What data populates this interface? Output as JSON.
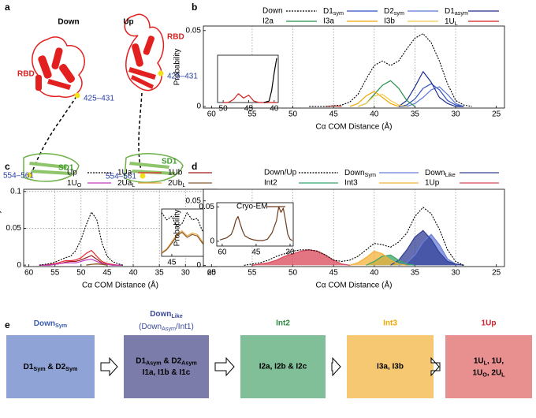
{
  "panel_a": {
    "label": "a",
    "structures": [
      {
        "title": "Down",
        "domain_top": "RBD",
        "domain_bottom": "SD1",
        "site_top": "425–431",
        "site_bottom": "554–561"
      },
      {
        "title": "Up",
        "domain_top": "RBD",
        "domain_bottom": "SD1",
        "site_top": "425–431",
        "site_bottom": "554–561"
      }
    ]
  },
  "chart_data": [
    {
      "type": "line",
      "panel_label": "b",
      "xlabel": "Cα COM Distance (Å)",
      "ylabel": "Probability",
      "xlim": [
        61,
        24
      ],
      "ylim": [
        -0.001,
        0.053
      ],
      "xticks": [
        60,
        55,
        50,
        45,
        40,
        35,
        30,
        25
      ],
      "yticks": [
        0,
        0.05
      ],
      "grid": "x",
      "fill": false,
      "x": [
        48,
        47,
        46,
        45,
        44,
        43,
        42,
        41,
        40,
        39,
        38,
        37,
        36,
        35,
        34,
        33,
        32,
        31,
        30,
        29,
        28
      ],
      "series": [
        {
          "name": "Down",
          "color": "#000000",
          "dash": true,
          "values": [
            0,
            0,
            0,
            0.0005,
            0.001,
            0.003,
            0.008,
            0.018,
            0.027,
            0.03,
            0.027,
            0.03,
            0.038,
            0.045,
            0.048,
            0.042,
            0.03,
            0.015,
            0.004,
            0.001,
            0
          ]
        },
        {
          "name": [
            "D1",
            {
              "sub": "sym"
            }
          ],
          "color": "#2e4fbf",
          "values": [
            null,
            null,
            null,
            null,
            null,
            null,
            null,
            null,
            null,
            null,
            null,
            0,
            0.001,
            0.005,
            0.012,
            0.015,
            0.011,
            0.004,
            0.001,
            0,
            null
          ]
        },
        {
          "name": [
            "D2",
            {
              "sub": "sym"
            }
          ],
          "color": "#5a78d4",
          "values": [
            null,
            null,
            null,
            null,
            null,
            null,
            null,
            null,
            null,
            null,
            null,
            0,
            0,
            0.002,
            0.006,
            0.011,
            0.013,
            0.008,
            0.002,
            0,
            null
          ]
        },
        {
          "name": [
            "D1",
            {
              "sub": "asym"
            }
          ],
          "color": "#1c2f8a",
          "values": [
            null,
            null,
            null,
            null,
            null,
            null,
            null,
            null,
            null,
            null,
            null,
            0,
            0.004,
            0.013,
            0.023,
            0.016,
            0.006,
            0.002,
            0,
            0,
            null
          ]
        },
        {
          "name": "I2a",
          "color": "#23914a",
          "values": [
            null,
            null,
            null,
            null,
            null,
            null,
            0,
            0.002,
            0.008,
            0.014,
            0.017,
            0.012,
            0.004,
            0,
            null,
            null,
            null,
            null,
            null,
            null,
            null
          ]
        },
        {
          "name": "I3a",
          "color": "#f0a500",
          "values": [
            null,
            null,
            null,
            null,
            null,
            0,
            0.002,
            0.007,
            0.01,
            0.006,
            0.002,
            0,
            null,
            null,
            null,
            null,
            null,
            null,
            null,
            null,
            null
          ]
        },
        {
          "name": "I3b",
          "color": "#f2c94c",
          "values": [
            null,
            null,
            null,
            null,
            null,
            null,
            0,
            0.002,
            0.007,
            0.008,
            0.004,
            0.001,
            0,
            null,
            null,
            null,
            null,
            null,
            null,
            null,
            null
          ]
        },
        {
          "name": [
            "1U",
            {
              "sub": "L"
            }
          ],
          "color": "#d41f1f",
          "values": [
            null,
            null,
            0,
            0.0004,
            0,
            null,
            null,
            null,
            null,
            null,
            null,
            null,
            null,
            null,
            null,
            null,
            null,
            null,
            null,
            null,
            null
          ]
        }
      ],
      "inset": {
        "type": "line",
        "xlim": [
          51.1,
          39.2
        ],
        "ylim": [
          0,
          0.0032
        ],
        "xticks": [
          50,
          45,
          40
        ],
        "x": [
          50,
          49,
          48,
          47,
          46,
          45,
          44,
          43,
          42,
          41,
          40.5,
          40,
          39.5
        ],
        "series": [
          {
            "color": "#d41f1f",
            "values": [
              0,
              0,
              0.0002,
              0.0006,
              0.0003,
              0.0005,
              0.0001,
              0,
              0,
              0,
              0,
              0,
              0
            ]
          },
          {
            "color": "#000000",
            "values": [
              null,
              null,
              null,
              null,
              null,
              null,
              null,
              null,
              0,
              0.0001,
              0.0008,
              0.002,
              0.003
            ]
          }
        ]
      }
    },
    {
      "type": "line",
      "panel_label": "c",
      "xlabel": "Cα COM Distance (Å)",
      "ylabel": "Probability",
      "xlim": [
        61,
        24
      ],
      "ylim": [
        -0.002,
        0.103
      ],
      "xticks": [
        60,
        55,
        50,
        45,
        40,
        35,
        30,
        25
      ],
      "yticks": [
        0,
        0.05,
        0.1
      ],
      "grid": "both",
      "fill": false,
      "x": [
        58,
        57,
        56,
        55,
        54,
        53,
        52,
        51,
        50,
        49,
        48,
        47,
        46,
        45,
        44,
        43,
        42
      ],
      "series": [
        {
          "name": "Up",
          "color": "#000000",
          "dash": true,
          "values": [
            0,
            0.001,
            0.002,
            0.004,
            0.007,
            0.01,
            0.012,
            0.02,
            0.035,
            0.055,
            0.072,
            0.062,
            0.03,
            0.012,
            0.005,
            0.002,
            0
          ]
        },
        {
          "name": "1Ua",
          "color": "#e8262b",
          "values": [
            0,
            0,
            0.001,
            0.002,
            0.004,
            0.006,
            0.006,
            0.007,
            0.01,
            0.016,
            0.02,
            0.012,
            0.005,
            0.002,
            0.001,
            0,
            0
          ]
        },
        {
          "name": "1Ub",
          "color": "#a01818",
          "values": [
            0,
            0,
            0,
            0.001,
            0.002,
            0.004,
            0.005,
            0.005,
            0.007,
            0.01,
            0.013,
            0.008,
            0.003,
            0.001,
            0,
            0,
            0
          ]
        },
        {
          "name": [
            "1U",
            {
              "sub": "O"
            }
          ],
          "color": "#c23bc2",
          "values": [
            0,
            0,
            0,
            0.001,
            0.002,
            0.003,
            0.003,
            0.003,
            0.005,
            0.007,
            0.008,
            0.005,
            0.002,
            0.001,
            0,
            0,
            0
          ]
        },
        {
          "name": [
            "2Ua",
            {
              "sub": "L"
            }
          ],
          "color": "#e8a33b",
          "values": [
            null,
            null,
            null,
            null,
            null,
            null,
            null,
            null,
            null,
            0,
            0.001,
            0.002,
            0.001,
            0,
            null,
            null,
            null
          ]
        },
        {
          "name": [
            "2Ub",
            {
              "sub": "L"
            }
          ],
          "color": "#8b5a2b",
          "values": [
            null,
            null,
            null,
            null,
            null,
            null,
            null,
            null,
            null,
            0,
            0.001,
            0.0015,
            0.001,
            0,
            null,
            null,
            null
          ]
        }
      ],
      "inset": {
        "type": "line",
        "xlim": [
          46,
          39.2
        ],
        "ylim": [
          0,
          0.0065
        ],
        "xticks": [
          45,
          40
        ],
        "x": [
          46,
          45.5,
          45,
          44.5,
          44,
          43.5,
          43,
          42.5,
          42,
          41.5,
          41,
          40.5,
          40,
          39.5,
          39.2
        ],
        "series": [
          {
            "color": "#000000",
            "dash": true,
            "values": [
              0.006,
              0.005,
              0.0055,
              0.004,
              0.0045,
              0.006,
              0.005,
              0.0052,
              0.0035,
              0.004,
              0.002,
              0.001,
              0.0005,
              0.0002,
              0
            ]
          },
          {
            "color": "#e8a33b",
            "values": [
              0.0005,
              0.001,
              0.002,
              0.003,
              0.0035,
              0.0028,
              0.0032,
              0.003,
              0.002,
              0.0015,
              0.0005,
              0.0002,
              0,
              0,
              0
            ]
          },
          {
            "color": "#8b5a2b",
            "values": [
              0.0004,
              0.0009,
              0.0018,
              0.0028,
              0.0033,
              0.0026,
              0.003,
              0.0028,
              0.0018,
              0.0013,
              0.0004,
              0.0001,
              0,
              0,
              0
            ]
          }
        ]
      }
    },
    {
      "type": "line",
      "panel_label": "d",
      "xlabel": "Cα COM Distance (Å)",
      "ylabel": "Probability",
      "xlim": [
        61,
        24
      ],
      "ylim": [
        -0.001,
        0.059
      ],
      "xticks": [
        60,
        55,
        50,
        45,
        40,
        35,
        30,
        25
      ],
      "yticks": [
        0,
        0.05
      ],
      "grid": "x",
      "fill": true,
      "x": [
        56,
        55,
        54,
        53,
        52,
        51,
        50,
        49,
        48,
        47,
        46,
        45,
        44,
        43,
        42,
        41,
        40,
        39,
        38,
        37,
        36,
        35,
        34,
        33,
        32,
        31,
        30,
        29
      ],
      "series": [
        {
          "name": "Down/Up",
          "color": "#000000",
          "dash": true,
          "values": [
            0,
            0.001,
            0.002,
            0.004,
            0.007,
            0.009,
            0.011,
            0.012,
            0.012,
            0.011,
            0.008,
            0.004,
            0.003,
            0.004,
            0.007,
            0.012,
            0.017,
            0.016,
            0.014,
            0.018,
            0.025,
            0.038,
            0.045,
            0.04,
            0.028,
            0.012,
            0.003,
            0
          ]
        },
        {
          "name": [
            "Down",
            {
              "sub": "Sym"
            }
          ],
          "color": "#6a7fd8",
          "values": [
            null,
            null,
            null,
            null,
            null,
            null,
            null,
            null,
            null,
            null,
            null,
            null,
            null,
            null,
            null,
            null,
            null,
            null,
            null,
            0,
            0.002,
            0.008,
            0.018,
            0.024,
            0.016,
            0.005,
            0.001,
            0
          ]
        },
        {
          "name": [
            "Down",
            {
              "sub": "Like"
            }
          ],
          "color": "#323f95",
          "values": [
            null,
            null,
            null,
            null,
            null,
            null,
            null,
            null,
            null,
            null,
            null,
            null,
            null,
            null,
            null,
            null,
            null,
            null,
            0,
            0.004,
            0.012,
            0.022,
            0.027,
            0.02,
            0.01,
            0.003,
            0.001,
            0
          ]
        },
        {
          "name": "Int2",
          "color": "#3aa46a",
          "values": [
            null,
            null,
            null,
            null,
            null,
            null,
            null,
            null,
            null,
            null,
            null,
            null,
            null,
            null,
            null,
            0,
            0.003,
            0.007,
            0.008,
            0.004,
            0.001,
            0,
            null,
            null,
            null,
            null,
            null,
            null
          ]
        },
        {
          "name": "Int3",
          "color": "#f4b13a",
          "values": [
            null,
            null,
            null,
            null,
            null,
            null,
            null,
            null,
            null,
            null,
            null,
            null,
            null,
            0,
            0.002,
            0.006,
            0.011,
            0.009,
            0.004,
            0.001,
            0,
            null,
            null,
            null,
            null,
            null,
            null,
            null
          ]
        },
        {
          "name": "1Up",
          "color": "#d9475a",
          "values": [
            null,
            0,
            0.001,
            0.002,
            0.004,
            0.007,
            0.009,
            0.011,
            0.012,
            0.011,
            0.008,
            0.004,
            0.001,
            0,
            null,
            null,
            null,
            null,
            null,
            null,
            null,
            null,
            null,
            null,
            null,
            null,
            null,
            null
          ]
        }
      ],
      "inset": {
        "type": "line",
        "xlim": [
          62.4,
          28.6
        ],
        "ylim": [
          -0.007,
          0.056
        ],
        "xticks": [
          60,
          45,
          30
        ],
        "yticks": [
          0,
          0.05
        ],
        "x": [
          61,
          58,
          56,
          55,
          54,
          53,
          52,
          51,
          50,
          48,
          46,
          44,
          42,
          40,
          38,
          36,
          35,
          34,
          33,
          32,
          31,
          30,
          29
        ],
        "series": [
          {
            "name": "Cryo-EM",
            "color": "#6b3a1a",
            "values": [
              0.002,
              0.005,
              0.01,
              0.018,
              0.03,
              0.036,
              0.025,
              0.015,
              0.008,
              0.004,
              0.002,
              0.001,
              0.001,
              0.003,
              0.012,
              0.03,
              0.05,
              0.042,
              0.048,
              0.03,
              0.01,
              0.003,
              0.001
            ]
          }
        ]
      }
    }
  ],
  "panel_e": {
    "label": "e",
    "states": [
      {
        "title": [
          "Down",
          {
            "sub": "Sym"
          }
        ],
        "title_color": "#3a5cb0",
        "color": "#8fa3d6",
        "lines": [
          [
            "D1",
            {
              "sub": "Sym"
            },
            " & D2",
            {
              "sub": "Sym"
            }
          ]
        ]
      },
      {
        "title": [
          "Down",
          {
            "sub": "Like"
          }
        ],
        "subtitle": [
          "(Down",
          {
            "sub": "Asym"
          },
          "/Int1)"
        ],
        "title_color": "#3c4a9c",
        "color": "#7c7cab",
        "lines": [
          [
            "D1",
            {
              "sub": "Asym"
            },
            " & D2",
            {
              "sub": "Asym"
            }
          ],
          "I1a, I1b & I1c"
        ]
      },
      {
        "title": "Int2",
        "title_color": "#2a8a40",
        "color": "#80bf98",
        "lines": [
          "I2a, I2b & I2c"
        ]
      },
      {
        "title": "Int3",
        "title_color": "#f0a800",
        "color": "#f7c872",
        "lines": [
          "I3a, I3b"
        ]
      },
      {
        "title": "1Up",
        "title_color": "#d02030",
        "color": "#e88f8f",
        "lines": [
          [
            "1U",
            {
              "sub": "L"
            },
            ", 1U,"
          ],
          [
            "1U",
            {
              "sub": "O"
            },
            ", 2U",
            {
              "sub": "L"
            }
          ]
        ]
      }
    ]
  }
}
